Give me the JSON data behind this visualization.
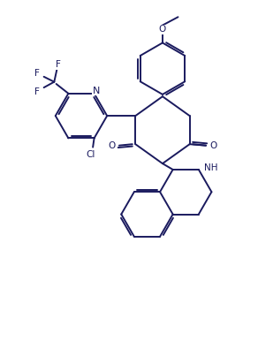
{
  "bg_color": "#ffffff",
  "line_color": "#1a1a5e",
  "line_width": 1.4,
  "figsize": [
    2.92,
    3.86
  ],
  "dpi": 100,
  "xlim": [
    0,
    10
  ],
  "ylim": [
    0,
    13.2
  ]
}
